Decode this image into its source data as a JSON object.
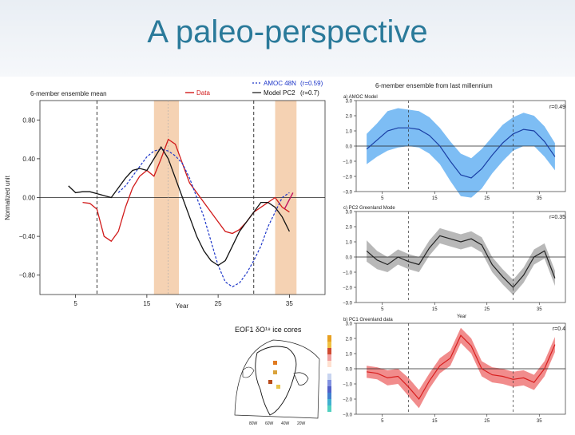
{
  "slide": {
    "title": "A paleo-perspective"
  },
  "colors": {
    "title": "#2a7a9a",
    "data": "#d11a1a",
    "model": "#111111",
    "amoc": "#1c35c8",
    "highlight": "#f5d2b3",
    "blue_band": "#6fb6f3",
    "blue_line": "#1a3fa5",
    "gray_band": "#b0b0b0",
    "gray_line": "#222222",
    "red_band": "#f08080",
    "red_line": "#d81e1e"
  },
  "chart_data": [
    {
      "type": "line",
      "id": "left",
      "title": "6-member ensemble mean",
      "xlabel": "Year",
      "ylabel": "Normalized unit",
      "xlim": [
        0,
        40
      ],
      "ylim": [
        -1.0,
        1.0
      ],
      "xticks": [
        5,
        15,
        25,
        35
      ],
      "xtick_labels": [
        "5",
        "15",
        "25",
        "35"
      ],
      "yticks": [
        0.8,
        0.4,
        0.0,
        -0.4,
        -0.8
      ],
      "ytick_labels": [
        "0.80",
        "0.40",
        "0.00",
        "−0.40",
        "−0.80"
      ],
      "vlines_dashed": [
        8,
        30
      ],
      "vlines_thin": [
        18
      ],
      "shaded": [
        [
          16,
          19.5
        ],
        [
          33,
          36
        ]
      ],
      "legend": [
        {
          "label": "Data",
          "style": "red"
        },
        {
          "label": "AMOC 48N",
          "suffix": "(r=0.59)",
          "style": "blue-dashed"
        },
        {
          "label": "Model PC2",
          "suffix": "(r=0.7)",
          "style": "black"
        }
      ],
      "series": [
        {
          "name": "Data",
          "x": [
            6,
            7,
            8,
            9,
            10,
            11,
            12,
            13,
            14,
            15,
            16,
            17,
            18,
            19,
            20,
            21,
            22,
            23,
            24,
            25,
            26,
            27,
            28,
            29,
            30,
            31,
            32,
            33,
            34,
            35
          ],
          "y": [
            -0.05,
            -0.06,
            -0.12,
            -0.4,
            -0.45,
            -0.35,
            -0.1,
            0.1,
            0.22,
            0.28,
            0.22,
            0.4,
            0.6,
            0.55,
            0.35,
            0.15,
            0.05,
            -0.05,
            -0.15,
            -0.25,
            -0.35,
            -0.37,
            -0.33,
            -0.25,
            -0.15,
            -0.1,
            -0.05,
            0.0,
            -0.1,
            -0.15
          ]
        },
        {
          "name": "AMOC 48N",
          "x": [
            11,
            12,
            13,
            14,
            15,
            16,
            17,
            18,
            19,
            20,
            21,
            22,
            23,
            24,
            25,
            26,
            27,
            28,
            29,
            30,
            31,
            32,
            33,
            34,
            35
          ],
          "y": [
            0.05,
            0.12,
            0.22,
            0.32,
            0.42,
            0.48,
            0.5,
            0.48,
            0.43,
            0.35,
            0.2,
            0.0,
            -0.2,
            -0.45,
            -0.7,
            -0.87,
            -0.92,
            -0.88,
            -0.78,
            -0.65,
            -0.5,
            -0.3,
            -0.15,
            0.0,
            0.05
          ]
        },
        {
          "name": "Model PC2",
          "x": [
            4,
            5,
            6,
            7,
            8,
            9,
            10,
            11,
            12,
            13,
            14,
            15,
            16,
            17,
            18,
            19,
            20,
            21,
            22,
            23,
            24,
            25,
            26,
            27,
            28,
            29,
            30,
            31,
            32,
            33,
            34,
            35
          ],
          "y": [
            0.12,
            0.05,
            0.06,
            0.06,
            0.04,
            0.02,
            0.0,
            0.1,
            0.2,
            0.28,
            0.3,
            0.28,
            0.4,
            0.52,
            0.4,
            0.2,
            0.0,
            -0.2,
            -0.4,
            -0.55,
            -0.65,
            -0.7,
            -0.65,
            -0.5,
            -0.35,
            -0.25,
            -0.15,
            -0.05,
            -0.05,
            -0.1,
            -0.2,
            -0.35
          ]
        }
      ]
    },
    {
      "type": "area",
      "id": "a",
      "title": "6-member ensemble from last millennium",
      "subtitle": "a) AMOC Model",
      "annotation": "r=0.49",
      "xlabel": "",
      "ylim": [
        -3.0,
        3.0
      ],
      "yticks": [
        3.0,
        2.0,
        1.0,
        0.0,
        -1.0,
        -2.0,
        -3.0
      ],
      "ytick_labels": [
        "3.0",
        "2.0",
        "1.0",
        "0.0",
        "−1.0",
        "−2.0",
        "−3.0"
      ],
      "xticks": [
        5,
        15,
        25,
        35
      ],
      "xtick_labels": [
        "5",
        "15",
        "25",
        "35"
      ],
      "xlim": [
        0,
        40
      ],
      "vlines_dashed": [
        10,
        30
      ],
      "x": [
        2,
        4,
        6,
        8,
        10,
        12,
        14,
        16,
        18,
        20,
        22,
        24,
        26,
        28,
        30,
        32,
        34,
        36,
        38
      ],
      "y": [
        -0.2,
        0.4,
        1.0,
        1.2,
        1.2,
        1.1,
        0.7,
        0.0,
        -1.0,
        -1.9,
        -2.1,
        -1.5,
        -0.6,
        0.2,
        0.8,
        1.1,
        1.0,
        0.3,
        -0.7
      ],
      "band": [
        1.0,
        1.1,
        1.3,
        1.3,
        1.2,
        1.2,
        1.2,
        1.2,
        1.3,
        1.4,
        1.3,
        1.3,
        1.2,
        1.2,
        1.1,
        1.1,
        1.0,
        1.0,
        0.9
      ]
    },
    {
      "type": "area",
      "id": "b",
      "subtitle": "c) PC2 Greenland Mode",
      "annotation": "r=0.35",
      "xlabel": "Year",
      "ylim": [
        -3.0,
        3.0
      ],
      "yticks": [
        3.0,
        2.0,
        1.0,
        0.0,
        -1.0,
        -2.0,
        -3.0
      ],
      "ytick_labels": [
        "3.0",
        "2.0",
        "1.0",
        "0.0",
        "−1.0",
        "−2.0",
        "−3.0"
      ],
      "xticks": [
        5,
        15,
        25,
        35
      ],
      "xtick_labels": [
        "5",
        "15",
        "25",
        "35"
      ],
      "xlim": [
        0,
        40
      ],
      "vlines_dashed": [
        10,
        30
      ],
      "x": [
        2,
        4,
        6,
        8,
        10,
        12,
        14,
        16,
        18,
        20,
        22,
        24,
        26,
        28,
        30,
        32,
        34,
        36,
        38
      ],
      "y": [
        0.4,
        -0.2,
        -0.5,
        0.0,
        -0.3,
        -0.5,
        0.6,
        1.4,
        1.2,
        1.0,
        1.2,
        0.8,
        -0.5,
        -1.3,
        -2.0,
        -1.2,
        0.0,
        0.4,
        -1.4
      ],
      "band": [
        0.7,
        0.6,
        0.5,
        0.5,
        0.5,
        0.5,
        0.5,
        0.5,
        0.5,
        0.5,
        0.5,
        0.5,
        0.5,
        0.5,
        0.5,
        0.5,
        0.5,
        0.5,
        0.5
      ]
    },
    {
      "type": "area",
      "id": "c",
      "subtitle": "b) PC1 Greenland data",
      "annotation": "r=0.4",
      "xlabel": "",
      "ylim": [
        -3.0,
        3.0
      ],
      "yticks": [
        3.0,
        2.0,
        1.0,
        0.0,
        -1.0,
        -2.0,
        -3.0
      ],
      "ytick_labels": [
        "3.0",
        "2.0",
        "1.0",
        "0.0",
        "−1.0",
        "−2.0",
        "−3.0"
      ],
      "xticks": [
        5,
        15,
        25,
        35
      ],
      "xtick_labels": [
        "5",
        "15",
        "25",
        "35"
      ],
      "xlim": [
        0,
        40
      ],
      "vlines_dashed": [
        10,
        30
      ],
      "x": [
        2,
        4,
        6,
        8,
        10,
        12,
        14,
        16,
        18,
        20,
        22,
        24,
        26,
        28,
        30,
        32,
        34,
        36,
        38
      ],
      "y": [
        -0.2,
        -0.3,
        -0.6,
        -0.5,
        -1.2,
        -2.0,
        -0.8,
        0.2,
        0.7,
        2.2,
        1.5,
        0.0,
        -0.4,
        -0.5,
        -0.7,
        -0.6,
        -0.9,
        0.0,
        1.6
      ],
      "band": [
        0.4,
        0.4,
        0.5,
        0.5,
        0.6,
        0.6,
        0.5,
        0.5,
        0.5,
        0.5,
        0.5,
        0.5,
        0.5,
        0.5,
        0.5,
        0.5,
        0.5,
        0.5,
        0.5
      ]
    }
  ],
  "map": {
    "title": "EOF1 δO¹⁸ ice cores",
    "lon_labels": [
      "80W",
      "60W",
      "40W",
      "20W"
    ]
  }
}
